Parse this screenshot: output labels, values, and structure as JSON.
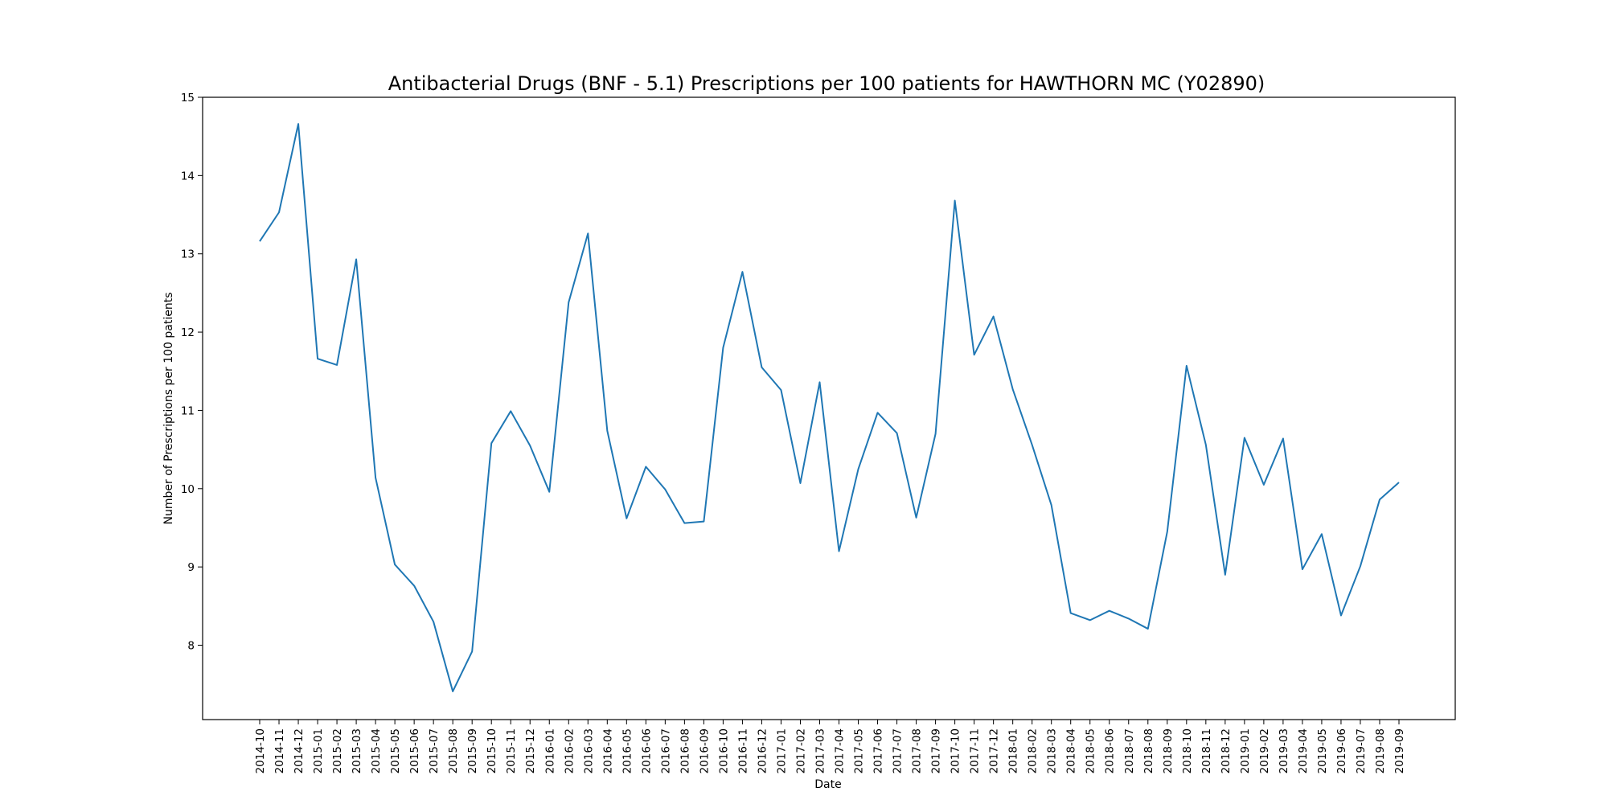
{
  "chart_data": {
    "type": "line",
    "title": "Antibacterial Drugs (BNF - 5.1) Prescriptions per 100 patients for HAWTHORN MC (Y02890)",
    "xlabel": "Date",
    "ylabel": "Number of Prescriptions per 100 patients",
    "ylim": [
      7.05,
      15.0
    ],
    "yticks": [
      8,
      9,
      10,
      11,
      12,
      13,
      14,
      15
    ],
    "grid": false,
    "series_color": "#1f77b4",
    "categories": [
      "2014-10",
      "2014-11",
      "2014-12",
      "2015-01",
      "2015-02",
      "2015-03",
      "2015-04",
      "2015-05",
      "2015-06",
      "2015-07",
      "2015-08",
      "2015-09",
      "2015-10",
      "2015-11",
      "2015-12",
      "2016-01",
      "2016-02",
      "2016-03",
      "2016-04",
      "2016-05",
      "2016-06",
      "2016-07",
      "2016-08",
      "2016-09",
      "2016-10",
      "2016-11",
      "2016-12",
      "2017-01",
      "2017-02",
      "2017-03",
      "2017-04",
      "2017-05",
      "2017-06",
      "2017-07",
      "2017-08",
      "2017-09",
      "2017-10",
      "2017-11",
      "2017-12",
      "2018-01",
      "2018-02",
      "2018-03",
      "2018-04",
      "2018-05",
      "2018-06",
      "2018-07",
      "2018-08",
      "2018-09",
      "2018-10",
      "2018-11",
      "2018-12",
      "2019-01",
      "2019-02",
      "2019-03",
      "2019-04",
      "2019-05",
      "2019-06",
      "2019-07",
      "2019-08",
      "2019-09"
    ],
    "values": [
      13.16,
      13.53,
      14.66,
      11.66,
      11.58,
      12.93,
      10.14,
      9.03,
      8.76,
      8.3,
      7.41,
      7.92,
      10.58,
      10.99,
      10.55,
      9.96,
      12.38,
      13.26,
      10.74,
      9.62,
      10.28,
      9.99,
      9.56,
      9.58,
      11.8,
      12.77,
      11.55,
      11.26,
      10.07,
      11.36,
      9.2,
      10.25,
      10.97,
      10.71,
      9.63,
      10.7,
      13.68,
      11.71,
      12.2,
      11.27,
      10.56,
      9.79,
      8.41,
      8.32,
      8.44,
      8.34,
      8.21,
      9.45,
      11.57,
      10.56,
      8.9,
      10.65,
      10.05,
      10.64,
      8.97,
      9.42,
      8.38,
      9.01,
      9.86,
      10.08
    ]
  }
}
